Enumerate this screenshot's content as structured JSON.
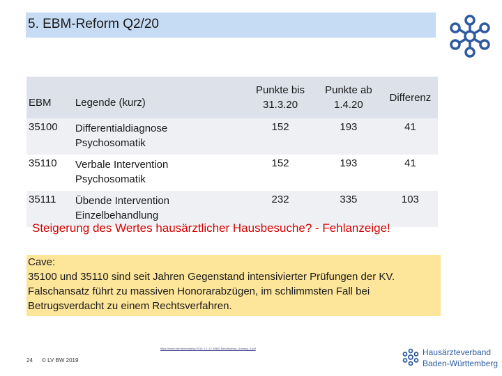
{
  "title": "5. EBM-Reform Q2/20",
  "table": {
    "headers": {
      "ebm": "EBM",
      "legend": "Legende (kurz)",
      "points_before_l1": "Punkte bis",
      "points_before_l2": "31.3.20",
      "points_after_l1": "Punkte ab",
      "points_after_l2": "1.4.20",
      "difference": "Differenz"
    },
    "rows": [
      {
        "code": "35100",
        "legend_l1": "Differentialdiagnose",
        "legend_l2": "Psychosomatik",
        "points_before": "152",
        "points_after": "193",
        "difference": "41"
      },
      {
        "code": "35110",
        "legend_l1": "Verbale Intervention",
        "legend_l2": "Psychosomatik",
        "points_before": "152",
        "points_after": "193",
        "difference": "41"
      },
      {
        "code": "35111",
        "legend_l1": "Übende Intervention",
        "legend_l2": "Einzelbehandlung",
        "points_before": "232",
        "points_after": "335",
        "difference": "103"
      }
    ]
  },
  "statement": "Steigerung des Wertes hausärztlicher Hausbesuche?  -  Fehlanzeige!",
  "cave": {
    "line1": "Cave:",
    "line2": "35100 und 35110 sind seit Jahren Gegenstand intensivierter Prüfungen der KV.",
    "line3": "Falschansatz führt zu massiven Honorarabzügen, im schlimmsten Fall bei",
    "line4": "Betrugsverdacht zu einem Rechtsverfahren."
  },
  "source_link": "https://www.kbv.de/media/sp/2019_12_12_EBM_Beschluesse_Anhang_3.pdf",
  "footer": {
    "page_number": "24",
    "copyright": "© LV BW 2019"
  },
  "logo": {
    "line1": "Hausärzteverband",
    "line2": "Baden-Württemberg"
  },
  "colors": {
    "title_bar": "#c5dcf4",
    "header_row": "#dde2ea",
    "statement": "#d40000",
    "cave_box": "#fde59a",
    "logo_blue": "#2c5aa0"
  }
}
